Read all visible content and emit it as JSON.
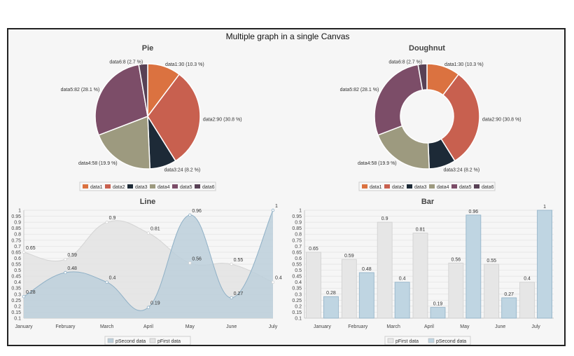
{
  "page_title": "Multiple graph in a single Canvas",
  "colors": {
    "data1": "#db7240",
    "data2": "#c8604f",
    "data3": "#1d2a37",
    "data4": "#9d9a7f",
    "data5": "#7c4d68",
    "data6": "#584155",
    "line_first_fill": "#e3e3e3",
    "line_first_stroke": "#d4d4d4",
    "line_second_fill": "#bccfdb",
    "line_second_stroke": "#8fb0c6",
    "bar_first_fill": "#e6e6e6",
    "bar_first_stroke": "#cfcfcf",
    "bar_second_fill": "#bfd5e2",
    "bar_second_stroke": "#8fb0c6"
  },
  "chart_data": [
    {
      "type": "pie",
      "title": "Pie",
      "slices": [
        {
          "name": "data1",
          "value": 30,
          "label": "data1:30 (10.3 %)"
        },
        {
          "name": "data2",
          "value": 90,
          "label": "data2:90 (30.8 %)"
        },
        {
          "name": "data3",
          "value": 24,
          "label": "data3:24 (8.2 %)"
        },
        {
          "name": "data4",
          "value": 58,
          "label": "data4:58 (19.9 %)"
        },
        {
          "name": "data5",
          "value": 82,
          "label": "data5:82 (28.1 %)"
        },
        {
          "name": "data6",
          "value": 8,
          "label": "data6:8 (2.7 %)"
        }
      ],
      "legend": [
        "data1",
        "data2",
        "data3",
        "data4",
        "data5",
        "data6"
      ]
    },
    {
      "type": "doughnut",
      "title": "Doughnut",
      "slices": [
        {
          "name": "data1",
          "value": 30,
          "label": "data1:30 (10.3 %)"
        },
        {
          "name": "data2",
          "value": 90,
          "label": "data2:90 (30.8 %)"
        },
        {
          "name": "data3",
          "value": 24,
          "label": "data3:24 (8.2 %)"
        },
        {
          "name": "data4",
          "value": 58,
          "label": "data4:58 (19.9 %)"
        },
        {
          "name": "data5",
          "value": 82,
          "label": "data5:82 (28.1 %)"
        },
        {
          "name": "data6",
          "value": 8,
          "label": "data6:8 (2.7 %)"
        }
      ],
      "legend": [
        "data1",
        "data2",
        "data3",
        "data4",
        "data5",
        "data6"
      ]
    },
    {
      "type": "line",
      "title": "Line",
      "categories": [
        "January",
        "February",
        "March",
        "April",
        "May",
        "June",
        "July"
      ],
      "series": [
        {
          "name": "pFirst data",
          "values": [
            0.65,
            0.59,
            0.9,
            0.81,
            0.56,
            0.55,
            0.4
          ],
          "value_labels": [
            "0.65",
            "0.59",
            "0.9",
            "0.81",
            "0.56",
            "0.55",
            "0.4"
          ]
        },
        {
          "name": "pSecond data",
          "values": [
            0.28,
            0.48,
            0.4,
            0.19,
            0.96,
            0.27,
            1
          ],
          "value_labels": [
            "0.28",
            "0.48",
            "0.4",
            "0.19",
            "0.96",
            "0.27",
            "1"
          ]
        }
      ],
      "legend": [
        "pSecond data",
        "pFirst data"
      ],
      "ylim": [
        0.1,
        1
      ],
      "yticks": [
        "0.1",
        "0.15",
        "0.2",
        "0.25",
        "0.3",
        "0.35",
        "0.4",
        "0.45",
        "0.5",
        "0.55",
        "0.6",
        "0.65",
        "0.7",
        "0.75",
        "0.8",
        "0.85",
        "0.9",
        "0.95",
        "1"
      ]
    },
    {
      "type": "bar",
      "title": "Bar",
      "categories": [
        "January",
        "February",
        "March",
        "April",
        "May",
        "June",
        "July"
      ],
      "series": [
        {
          "name": "pFirst data",
          "values": [
            0.65,
            0.59,
            0.9,
            0.81,
            0.56,
            0.55,
            0.4
          ],
          "value_labels": [
            "0.65",
            "0.59",
            "0.9",
            "0.81",
            "0.56",
            "0.55",
            "0.4"
          ]
        },
        {
          "name": "pSecond data",
          "values": [
            0.28,
            0.48,
            0.4,
            0.19,
            0.96,
            0.27,
            1
          ],
          "value_labels": [
            "0.28",
            "0.48",
            "0.4",
            "0.19",
            "0.96",
            "0.27",
            "1"
          ]
        }
      ],
      "legend": [
        "pFirst data",
        "pSecond data"
      ],
      "ylim": [
        0.1,
        1
      ],
      "yticks": [
        "0.1",
        "0.15",
        "0.2",
        "0.25",
        "0.3",
        "0.35",
        "0.4",
        "0.45",
        "0.5",
        "0.55",
        "0.6",
        "0.65",
        "0.7",
        "0.75",
        "0.8",
        "0.85",
        "0.9",
        "0.95",
        "1"
      ]
    }
  ]
}
